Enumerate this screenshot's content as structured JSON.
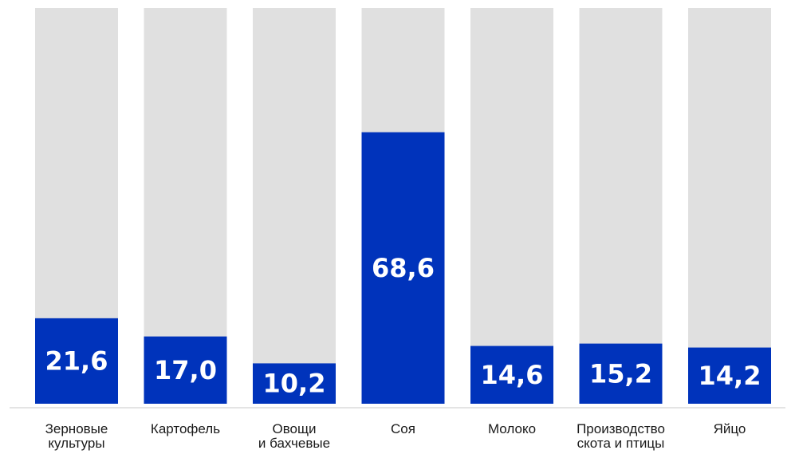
{
  "chart_data": {
    "type": "bar",
    "categories": [
      [
        "Зерновые",
        "культуры"
      ],
      [
        "Картофель"
      ],
      [
        "Овощи",
        "и бахчевые"
      ],
      [
        "Соя"
      ],
      [
        "Молоко"
      ],
      [
        "Производство",
        "скота и птицы"
      ],
      [
        "Яйцо"
      ]
    ],
    "values": [
      21.6,
      17.0,
      10.2,
      68.6,
      14.6,
      15.2,
      14.2
    ],
    "value_labels": [
      "21,6",
      "17,0",
      "10,2",
      "68,6",
      "14,6",
      "15,2",
      "14,2"
    ],
    "ylim": [
      0,
      100
    ],
    "grid": false,
    "legend": "none",
    "title": "",
    "xlabel": "",
    "ylabel": ""
  },
  "colors": {
    "bar_fill": "#0033bb",
    "track_fill": "#e0e0e0",
    "baseline": "#c8c8c8",
    "value_text": "#ffffff",
    "category_text": "#1a1a1a"
  }
}
